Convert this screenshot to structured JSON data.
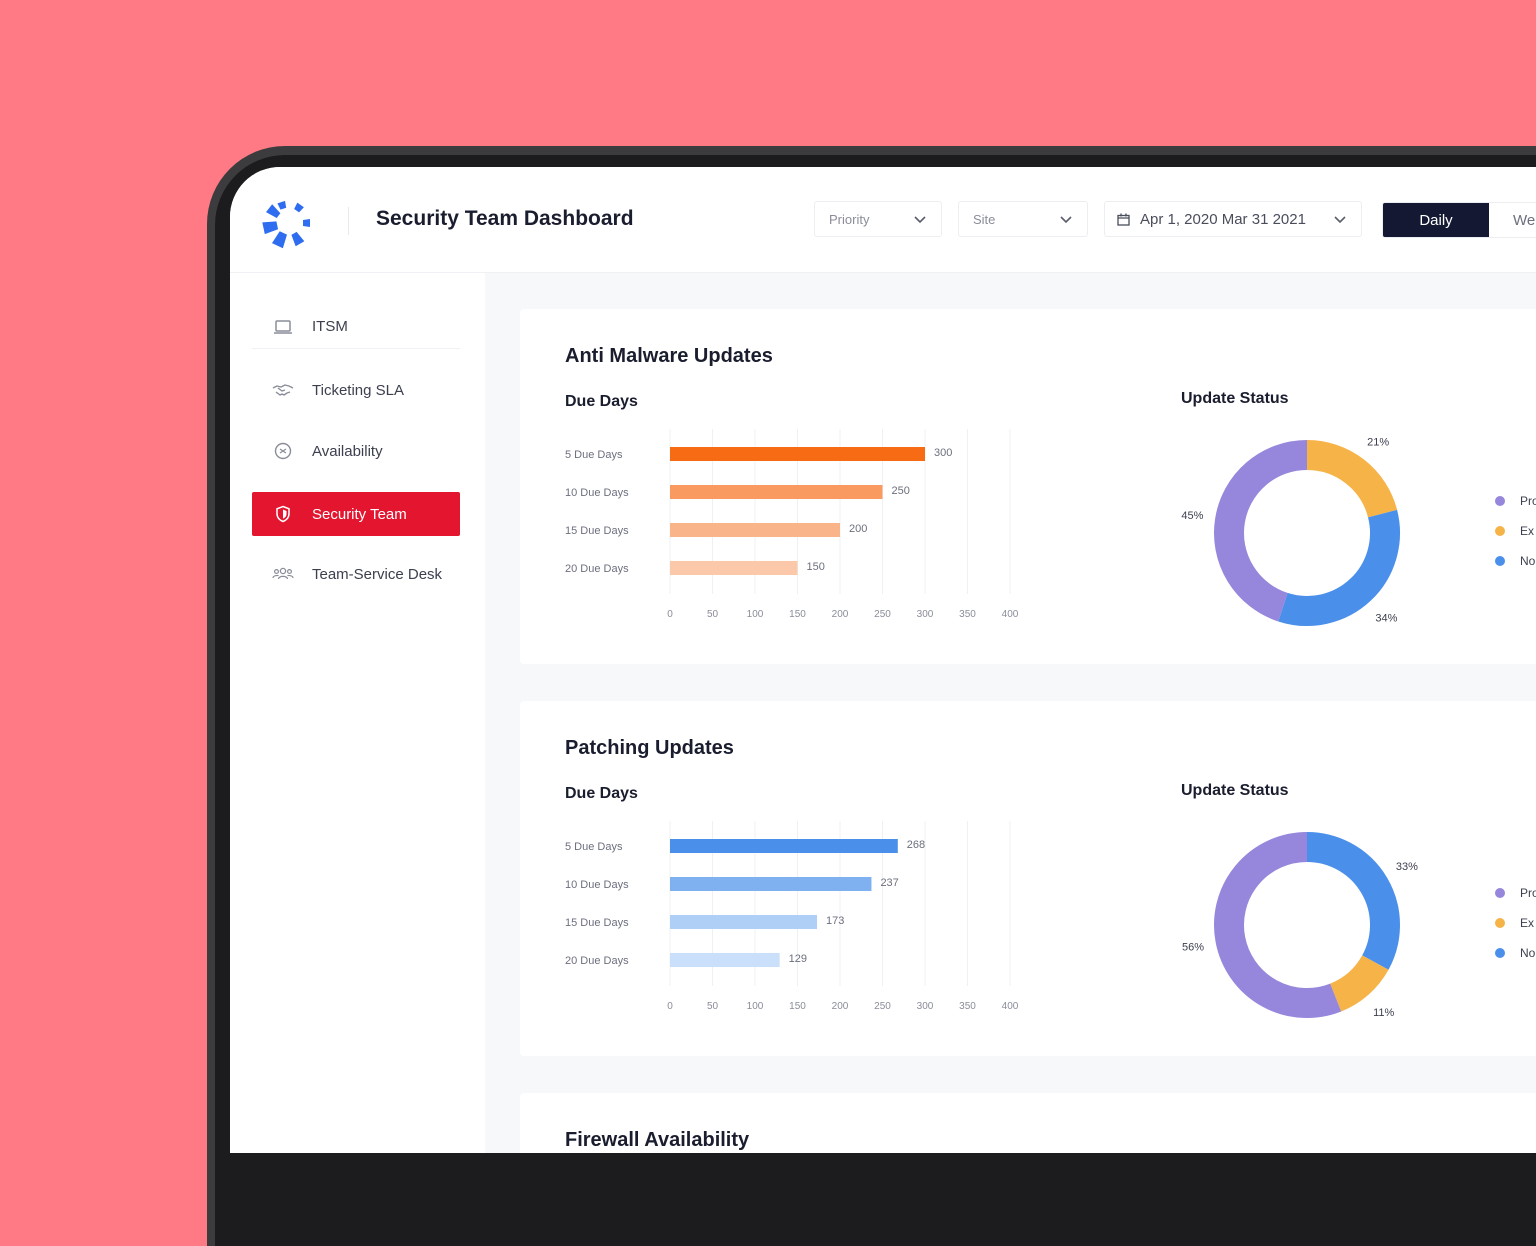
{
  "app": {
    "title": "Security Team Dashboard"
  },
  "filters": {
    "priority": {
      "label": "Priority"
    },
    "site": {
      "label": "Site"
    },
    "date_range": {
      "label": "Apr 1, 2020 Mar 31 2021"
    }
  },
  "view_tabs": [
    {
      "label": "Daily",
      "active": true
    },
    {
      "label": "We",
      "active": false
    }
  ],
  "sidebar": {
    "items": [
      {
        "label": "ITSM",
        "icon": "laptop-icon",
        "active": false
      },
      {
        "label": "Ticketing SLA",
        "icon": "handshake-icon",
        "active": false
      },
      {
        "label": "Availability",
        "icon": "badge-icon",
        "active": false
      },
      {
        "label": "Security Team",
        "icon": "shield-icon",
        "active": true
      },
      {
        "label": "Team-Service Desk",
        "icon": "users-icon",
        "active": false
      }
    ]
  },
  "colors": {
    "accent_red": "#e3152f",
    "dark_navy": "#141832",
    "purple": "#9686dc",
    "amber": "#f6b348",
    "blue": "#4a90ea",
    "orange": "#f76b15"
  },
  "sections": [
    {
      "title": "Anti Malware Updates",
      "bar_title": "Due Days",
      "donut_title": "Update Status",
      "bar_chart": {
        "type": "bar",
        "orientation": "horizontal",
        "categories": [
          "5 Due Days",
          "10 Due Days",
          "15 Due Days",
          "20 Due Days"
        ],
        "values": [
          300,
          250,
          200,
          150
        ],
        "x_ticks": [
          0,
          50,
          100,
          150,
          200,
          250,
          300,
          350,
          400
        ],
        "xlim": [
          0,
          400
        ],
        "colors": [
          "#f76b15",
          "#f99a61",
          "#fab48a",
          "#fbc9aa"
        ]
      },
      "donut_chart": {
        "type": "pie",
        "style": "donut",
        "segments": [
          {
            "value": 21,
            "label": "21%",
            "color": "#f6b348"
          },
          {
            "value": 34,
            "label": "34%",
            "color": "#4a90ea"
          },
          {
            "value": 45,
            "label": "45%",
            "color": "#9686dc"
          }
        ]
      },
      "legend": [
        {
          "label": "Pro",
          "color": "#9686dc"
        },
        {
          "label": "Ex",
          "color": "#f6b348"
        },
        {
          "label": "No",
          "color": "#4a90ea"
        }
      ]
    },
    {
      "title": "Patching Updates",
      "bar_title": "Due Days",
      "donut_title": "Update Status",
      "bar_chart": {
        "type": "bar",
        "orientation": "horizontal",
        "categories": [
          "5 Due Days",
          "10 Due Days",
          "15 Due Days",
          "20 Due Days"
        ],
        "values": [
          268,
          237,
          173,
          129
        ],
        "x_ticks": [
          0,
          50,
          100,
          150,
          200,
          250,
          300,
          350,
          400
        ],
        "xlim": [
          0,
          400
        ],
        "colors": [
          "#4a90ea",
          "#7fb1f0",
          "#b0cff6",
          "#cadffa"
        ]
      },
      "donut_chart": {
        "type": "pie",
        "style": "donut",
        "segments": [
          {
            "value": 33,
            "label": "33%",
            "color": "#4a90ea"
          },
          {
            "value": 11,
            "label": "11%",
            "color": "#f6b348"
          },
          {
            "value": 56,
            "label": "56%",
            "color": "#9686dc"
          }
        ]
      },
      "legend": [
        {
          "label": "Pro",
          "color": "#9686dc"
        },
        {
          "label": "Ex",
          "color": "#f6b348"
        },
        {
          "label": "No",
          "color": "#4a90ea"
        }
      ]
    },
    {
      "title": "Firewall Availability"
    }
  ]
}
